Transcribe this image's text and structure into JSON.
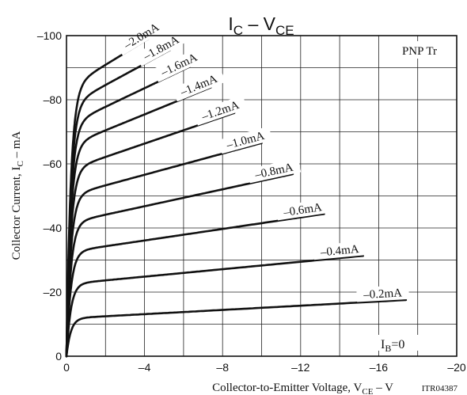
{
  "chart_data": {
    "type": "line",
    "title_parts": {
      "main": "I",
      "sub1": "C",
      "dash": " – ",
      "main2": "V",
      "sub2": "CE"
    },
    "xlabel_parts": {
      "text": "Collector-to-Emitter Voltage, V",
      "sub": "CE",
      "unit": " – V"
    },
    "ylabel_parts": {
      "text": "Collector Current, I",
      "sub": "C",
      "unit": " – mA"
    },
    "code": "ITR04387",
    "box_label": "PNP Tr",
    "ib0_label": {
      "main": "I",
      "sub": "B",
      "rest": "=0"
    },
    "xlim": [
      0,
      -20
    ],
    "ylim": [
      0,
      -100
    ],
    "xticks": [
      0,
      -4,
      -8,
      -12,
      -16,
      -20
    ],
    "yticks": [
      0,
      -20,
      -40,
      -60,
      -80,
      -100
    ],
    "x_tick_labels": [
      "0",
      "–4",
      "–8",
      "–12",
      "–16",
      "–20"
    ],
    "y_tick_labels": [
      "0",
      "–20",
      "–40",
      "–60",
      "–80",
      "–100"
    ],
    "grid": true,
    "series": [
      {
        "name": "–0.2mA",
        "ib": -0.2,
        "sat": -11.8,
        "slope": 0.33,
        "x_end": -17.4
      },
      {
        "name": "–0.4mA",
        "ib": -0.4,
        "sat": -22.5,
        "slope": 0.58,
        "x_end": -15.2
      },
      {
        "name": "–0.6mA",
        "ib": -0.6,
        "sat": -32.5,
        "slope": 0.9,
        "x_end": -13.2
      },
      {
        "name": "–0.8mA",
        "ib": -0.8,
        "sat": -41.5,
        "slope": 1.32,
        "x_end": -11.6
      },
      {
        "name": "–1.0mA",
        "ib": -1.0,
        "sat": -50,
        "slope": 1.65,
        "x_end": -10.0
      },
      {
        "name": "–1.2mA",
        "ib": -1.2,
        "sat": -58,
        "slope": 2.08,
        "x_end": -8.6
      },
      {
        "name": "–1.4mA",
        "ib": -1.4,
        "sat": -65.5,
        "slope": 2.48,
        "x_end": -7.4
      },
      {
        "name": "–1.6mA",
        "ib": -1.6,
        "sat": -72,
        "slope": 2.9,
        "x_end": -6.3
      },
      {
        "name": "–1.8mA",
        "ib": -1.8,
        "sat": -78,
        "slope": 3.3,
        "x_end": -5.3
      },
      {
        "name": "–2.0mA",
        "ib": -2.0,
        "sat": -83.5,
        "slope": 3.7,
        "x_end": -4.2
      }
    ]
  }
}
